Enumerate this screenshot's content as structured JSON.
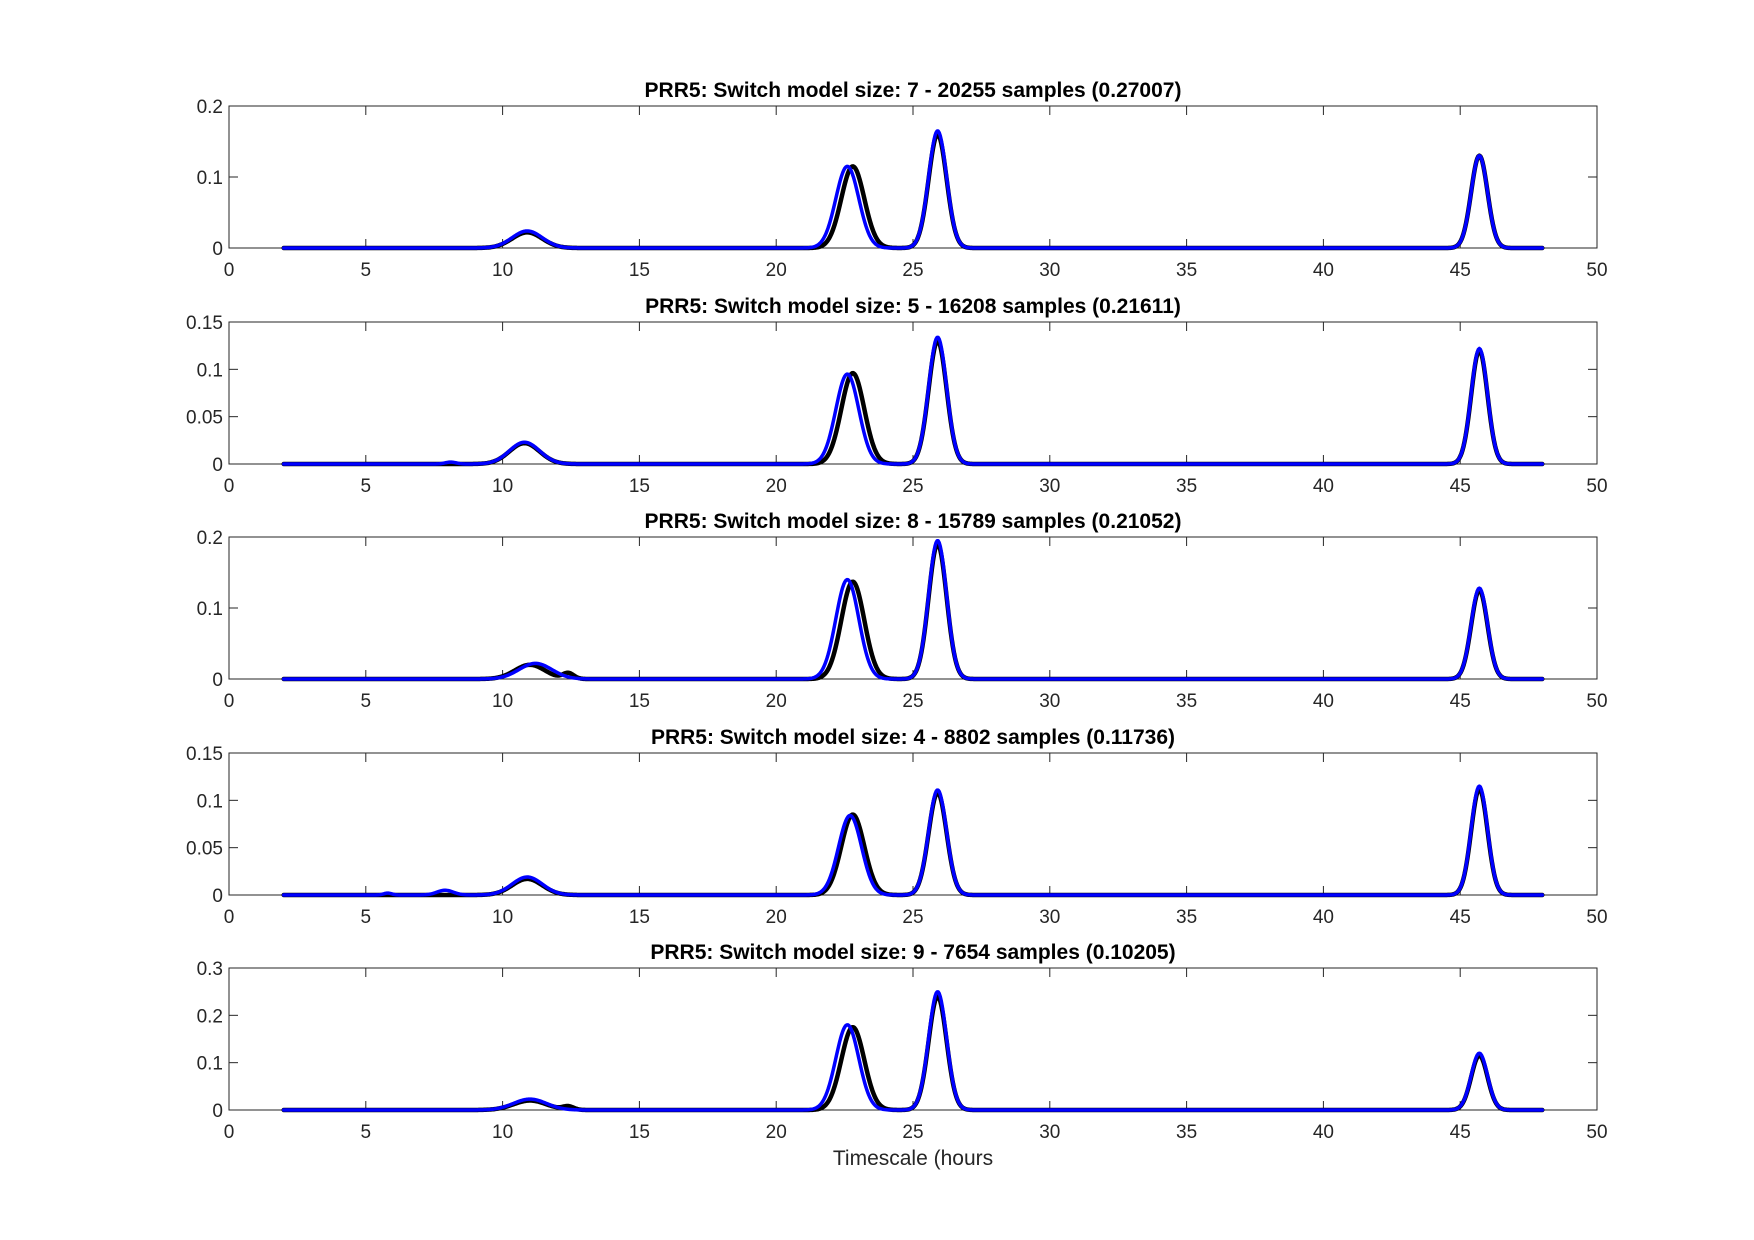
{
  "chart_data": {
    "type": "line",
    "xlabel": "Timescale (hours",
    "x_ticks": [
      0,
      5,
      10,
      15,
      20,
      25,
      30,
      35,
      40,
      45,
      50
    ],
    "xlim": [
      0,
      50
    ],
    "x_data_range": [
      2,
      48
    ],
    "grid": false,
    "series_colors": {
      "black_curve": "#000000",
      "blue_curve": "#0000ff"
    },
    "panels": [
      {
        "title": "PRR5: Switch model size: 7 - 20255 samples (0.27007)",
        "ylim": [
          0,
          0.2
        ],
        "y_ticks": [
          0,
          0.1,
          0.2
        ],
        "y_tick_labels": [
          "0",
          "0.1",
          "0.2"
        ],
        "series": [
          {
            "color": "#000000",
            "peaks": [
              [
                10.9,
                0.022,
                0.55
              ],
              [
                22.8,
                0.115,
                0.42
              ],
              [
                25.9,
                0.16,
                0.33
              ],
              [
                45.7,
                0.13,
                0.3
              ]
            ]
          },
          {
            "color": "#0000ff",
            "peaks": [
              [
                10.9,
                0.024,
                0.55
              ],
              [
                22.6,
                0.115,
                0.42
              ],
              [
                25.9,
                0.165,
                0.33
              ],
              [
                45.7,
                0.13,
                0.3
              ]
            ]
          }
        ]
      },
      {
        "title": "PRR5: Switch model size: 5 - 16208 samples (0.21611)",
        "ylim": [
          0,
          0.15
        ],
        "y_ticks": [
          0,
          0.05,
          0.1,
          0.15
        ],
        "y_tick_labels": [
          "0",
          "0.05",
          "0.1",
          "0.15"
        ],
        "series": [
          {
            "color": "#000000",
            "peaks": [
              [
                10.8,
                0.022,
                0.55
              ],
              [
                22.8,
                0.096,
                0.42
              ],
              [
                25.9,
                0.13,
                0.33
              ],
              [
                45.7,
                0.12,
                0.3
              ]
            ]
          },
          {
            "color": "#0000ff",
            "peaks": [
              [
                8.1,
                0.002,
                0.2
              ],
              [
                10.8,
                0.023,
                0.55
              ],
              [
                22.6,
                0.095,
                0.42
              ],
              [
                25.9,
                0.134,
                0.33
              ],
              [
                45.7,
                0.122,
                0.3
              ]
            ]
          }
        ]
      },
      {
        "title": "PRR5: Switch model size: 8 - 15789 samples (0.21052)",
        "ylim": [
          0,
          0.2
        ],
        "y_ticks": [
          0,
          0.1,
          0.2
        ],
        "y_tick_labels": [
          "0",
          "0.1",
          "0.2"
        ],
        "series": [
          {
            "color": "#000000",
            "peaks": [
              [
                11.0,
                0.02,
                0.55
              ],
              [
                12.4,
                0.008,
                0.2
              ],
              [
                22.8,
                0.137,
                0.42
              ],
              [
                25.9,
                0.19,
                0.33
              ],
              [
                45.7,
                0.125,
                0.3
              ]
            ]
          },
          {
            "color": "#0000ff",
            "peaks": [
              [
                11.2,
                0.022,
                0.6
              ],
              [
                22.6,
                0.14,
                0.42
              ],
              [
                25.9,
                0.195,
                0.33
              ],
              [
                45.7,
                0.128,
                0.3
              ]
            ]
          }
        ]
      },
      {
        "title": "PRR5: Switch model size: 4 - 8802 samples (0.11736)",
        "ylim": [
          0,
          0.15
        ],
        "y_ticks": [
          0,
          0.05,
          0.1,
          0.15
        ],
        "y_tick_labels": [
          "0",
          "0.05",
          "0.1",
          "0.15"
        ],
        "series": [
          {
            "color": "#000000",
            "peaks": [
              [
                10.9,
                0.017,
                0.55
              ],
              [
                22.8,
                0.085,
                0.42
              ],
              [
                25.9,
                0.108,
                0.33
              ],
              [
                45.7,
                0.112,
                0.3
              ]
            ]
          },
          {
            "color": "#0000ff",
            "peaks": [
              [
                5.8,
                0.002,
                0.15
              ],
              [
                7.9,
                0.005,
                0.3
              ],
              [
                10.9,
                0.019,
                0.55
              ],
              [
                22.7,
                0.084,
                0.42
              ],
              [
                25.9,
                0.111,
                0.33
              ],
              [
                45.7,
                0.115,
                0.3
              ]
            ]
          }
        ]
      },
      {
        "title": "PRR5: Switch model size: 9 - 7654 samples (0.10205)",
        "ylim": [
          0,
          0.3
        ],
        "y_ticks": [
          0,
          0.1,
          0.2,
          0.3
        ],
        "y_tick_labels": [
          "0",
          "0.1",
          "0.2",
          "0.3"
        ],
        "series": [
          {
            "color": "#000000",
            "peaks": [
              [
                11.0,
                0.02,
                0.6
              ],
              [
                12.4,
                0.007,
                0.2
              ],
              [
                22.8,
                0.175,
                0.42
              ],
              [
                25.9,
                0.24,
                0.33
              ],
              [
                45.7,
                0.115,
                0.3
              ]
            ]
          },
          {
            "color": "#0000ff",
            "peaks": [
              [
                11.0,
                0.023,
                0.6
              ],
              [
                22.6,
                0.18,
                0.42
              ],
              [
                25.9,
                0.25,
                0.33
              ],
              [
                45.7,
                0.12,
                0.3
              ]
            ]
          }
        ]
      }
    ]
  }
}
